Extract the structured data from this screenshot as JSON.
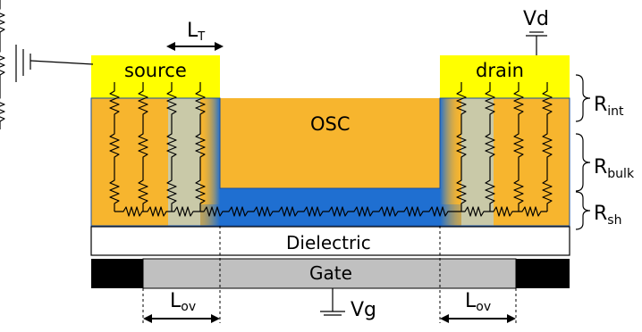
{
  "labels": {
    "source": "source",
    "drain": "drain",
    "osc": "OSC",
    "dielectric": "Dielectric",
    "gate": "Gate",
    "vd": "Vd",
    "vg": "Vg",
    "lt_main": "L",
    "lt_sub": "T",
    "lov_main": "L",
    "lov_sub": "ov",
    "r_main": "R",
    "r_int_sub": "int",
    "r_bulk_sub": "bulk",
    "r_sh_sub": "sh"
  },
  "colors": {
    "electrode": "#ffff00",
    "osc": "#f7b52e",
    "channel": "#1f6fd1",
    "injection_region": "#c9c9a8",
    "dielectric": "#ffffff",
    "gate": "#c0c0c0",
    "gate_ends": "#000000"
  }
}
